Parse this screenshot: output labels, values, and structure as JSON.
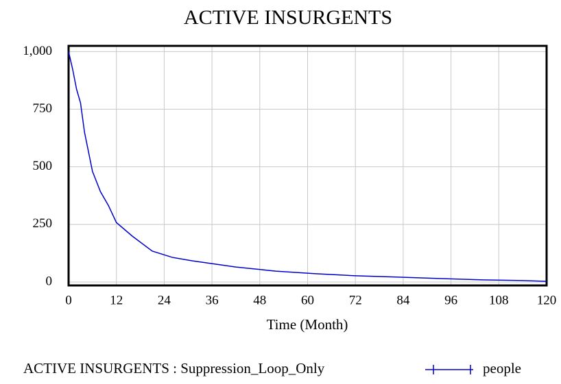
{
  "chart_data": {
    "type": "line",
    "title": "ACTIVE INSURGENTS",
    "x_label": "Time (Month)",
    "x": [
      0,
      1,
      2,
      3,
      4,
      6,
      8,
      10,
      12,
      16,
      21,
      26,
      31,
      42,
      52,
      62,
      72,
      83,
      93,
      104,
      114,
      120
    ],
    "series": [
      {
        "name": "ACTIVE INSURGENTS : Suppression_Loop_Only",
        "units": "people",
        "color": "#0000cc",
        "values": [
          1000,
          925,
          837,
          777,
          650,
          480,
          392,
          332,
          258,
          199,
          134,
          107,
          92,
          65,
          47,
          36,
          27,
          21,
          15,
          9,
          6,
          3
        ]
      }
    ],
    "xlim": [
      0,
      120
    ],
    "xticks": [
      0,
      12,
      24,
      36,
      48,
      60,
      72,
      84,
      96,
      108,
      120
    ],
    "ylim": [
      -15,
      1025
    ],
    "yticks": [
      0,
      250,
      500,
      750,
      {
        "value": 1000,
        "label": "1,000"
      }
    ],
    "grid": true
  }
}
